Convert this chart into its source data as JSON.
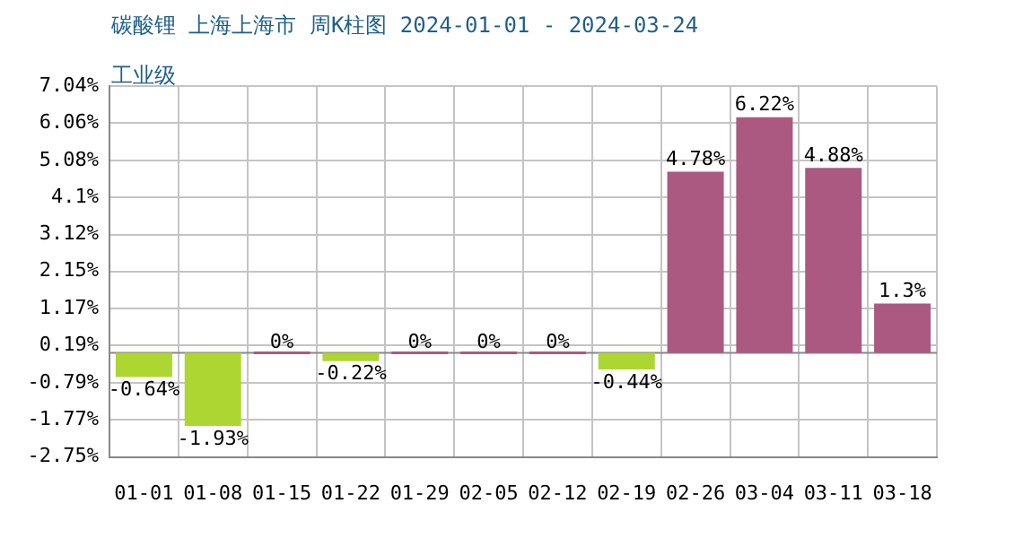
{
  "chart_data": {
    "type": "bar",
    "title": "碳酸锂 上海上海市 周K柱图 2024-01-01 - 2024-03-24",
    "subtitle": "工业级",
    "categories": [
      "01-01",
      "01-08",
      "01-15",
      "01-22",
      "01-29",
      "02-05",
      "02-12",
      "02-19",
      "02-26",
      "03-04",
      "03-11",
      "03-18"
    ],
    "values": [
      -0.64,
      -1.93,
      0,
      -0.22,
      0,
      0,
      0,
      -0.44,
      4.78,
      6.22,
      4.88,
      1.3
    ],
    "colors": [
      "#add633",
      "#add633",
      "#ab5980",
      "#add633",
      "#ab5980",
      "#ab5980",
      "#ab5980",
      "#add633",
      "#ab5980",
      "#ab5980",
      "#ab5980",
      "#ab5980"
    ],
    "value_labels": [
      "-0.64%",
      "-1.93%",
      "0%",
      "-0.22%",
      "0%",
      "0%",
      "0%",
      "-0.44%",
      "4.78%",
      "6.22%",
      "4.88%",
      "1.3%"
    ],
    "ylim": [
      -2.75,
      7.04
    ],
    "yticks": [
      {
        "value": -2.75,
        "label": "-2.75%"
      },
      {
        "value": -1.77,
        "label": "-1.77%"
      },
      {
        "value": -0.79,
        "label": "-0.79%"
      },
      {
        "value": 0.19,
        "label": "0.19%"
      },
      {
        "value": 1.17,
        "label": "1.17%"
      },
      {
        "value": 2.15,
        "label": "2.15%"
      },
      {
        "value": 3.12,
        "label": "3.12%"
      },
      {
        "value": 4.1,
        "label": "4.1%"
      },
      {
        "value": 5.08,
        "label": "5.08%"
      },
      {
        "value": 6.06,
        "label": "6.06%"
      },
      {
        "value": 7.04,
        "label": "7.04%"
      }
    ],
    "grid": true,
    "legend": false
  }
}
